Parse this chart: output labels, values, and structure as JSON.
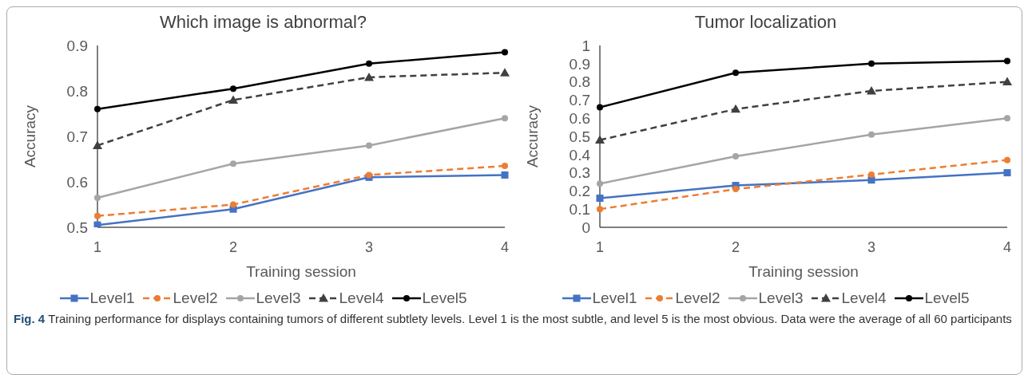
{
  "chart_data": [
    {
      "type": "line",
      "title": "Which image is abnormal?",
      "xlabel": "Training session",
      "ylabel": "Accuracy",
      "categories": [
        "1",
        "2",
        "3",
        "4"
      ],
      "ylim": [
        0.5,
        0.9
      ],
      "yticks": [
        0.5,
        0.6,
        0.7,
        0.8,
        0.9
      ],
      "grid": false,
      "legend": "bottom",
      "series": [
        {
          "name": "Level1",
          "color": "#4472c4",
          "marker": "square",
          "line_style": "solid",
          "values": [
            0.505,
            0.54,
            0.61,
            0.615
          ]
        },
        {
          "name": "Level2",
          "color": "#ed7d31",
          "marker": "circle",
          "line_style": "dashed",
          "values": [
            0.525,
            0.55,
            0.615,
            0.635
          ]
        },
        {
          "name": "Level3",
          "color": "#a5a5a5",
          "marker": "circle",
          "line_style": "solid",
          "values": [
            0.565,
            0.64,
            0.68,
            0.74
          ]
        },
        {
          "name": "Level4",
          "color": "#404040",
          "marker": "triangle",
          "line_style": "dashed",
          "values": [
            0.68,
            0.78,
            0.83,
            0.84
          ]
        },
        {
          "name": "Level5",
          "color": "#000000",
          "marker": "circle",
          "line_style": "solid",
          "values": [
            0.76,
            0.805,
            0.86,
            0.885
          ]
        }
      ],
      "annotations": [
        "Fig. 4",
        "Training performance for displays containing tumors of different subtlety levels. Level 1 is the most subtle, and level 5 is the most obvious. Data were the average of all 60 participants"
      ]
    },
    {
      "type": "line",
      "title": "Tumor localization",
      "xlabel": "Training session",
      "ylabel": "Accuracy",
      "categories": [
        "1",
        "2",
        "3",
        "4"
      ],
      "ylim": [
        0,
        1
      ],
      "yticks": [
        0,
        0.1,
        0.2,
        0.3,
        0.4,
        0.5,
        0.6,
        0.7,
        0.8,
        0.9,
        1
      ],
      "grid": false,
      "legend": "bottom",
      "series": [
        {
          "name": "Level1",
          "color": "#4472c4",
          "marker": "square",
          "line_style": "solid",
          "values": [
            0.16,
            0.23,
            0.26,
            0.3
          ]
        },
        {
          "name": "Level2",
          "color": "#ed7d31",
          "marker": "circle",
          "line_style": "dashed",
          "values": [
            0.1,
            0.21,
            0.29,
            0.37
          ]
        },
        {
          "name": "Level3",
          "color": "#a5a5a5",
          "marker": "circle",
          "line_style": "solid",
          "values": [
            0.24,
            0.39,
            0.51,
            0.6
          ]
        },
        {
          "name": "Level4",
          "color": "#404040",
          "marker": "triangle",
          "line_style": "dashed",
          "values": [
            0.48,
            0.65,
            0.75,
            0.8
          ]
        },
        {
          "name": "Level5",
          "color": "#000000",
          "marker": "circle",
          "line_style": "solid",
          "values": [
            0.66,
            0.85,
            0.9,
            0.915
          ]
        }
      ]
    }
  ]
}
